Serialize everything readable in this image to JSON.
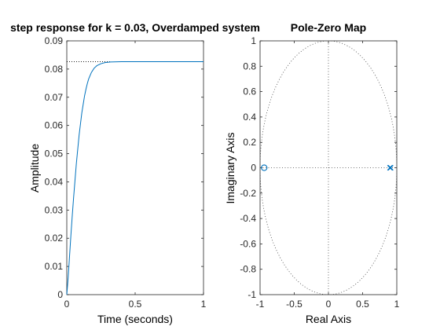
{
  "chart_data": [
    {
      "type": "line",
      "title": "step response for k = 0.03, Overdamped system",
      "xlabel": "Time (seconds)",
      "ylabel": "Amplitude",
      "xlim": [
        0,
        1
      ],
      "ylim": [
        0,
        0.09
      ],
      "xticks": [
        0,
        0.5,
        1
      ],
      "xtick_labels": [
        "0",
        "0.5",
        "1"
      ],
      "yticks": [
        0,
        0.01,
        0.02,
        0.03,
        0.04,
        0.05,
        0.06,
        0.07,
        0.08,
        0.09
      ],
      "ytick_labels": [
        "0",
        "0.01",
        "0.02",
        "0.03",
        "0.04",
        "0.05",
        "0.06",
        "0.07",
        "0.08",
        "0.09"
      ],
      "grid": false,
      "series": [
        {
          "color": "#0072bd",
          "x": [
            0,
            0.01,
            0.02,
            0.03,
            0.04,
            0.05,
            0.06,
            0.07,
            0.08,
            0.09,
            0.1,
            0.11,
            0.12,
            0.13,
            0.14,
            0.15,
            0.16,
            0.18,
            0.2,
            0.22,
            0.25,
            0.28,
            0.32,
            0.4,
            0.5,
            0.6,
            0.7,
            0.8,
            0.9,
            1.0
          ],
          "y": [
            0,
            0.006,
            0.0135,
            0.021,
            0.028,
            0.0345,
            0.0405,
            0.0465,
            0.0515,
            0.0565,
            0.0605,
            0.0645,
            0.0675,
            0.0705,
            0.0728,
            0.0748,
            0.0765,
            0.0788,
            0.0803,
            0.0812,
            0.0819,
            0.0823,
            0.0825,
            0.0826,
            0.0826,
            0.0826,
            0.0826,
            0.0826,
            0.0826,
            0.0826
          ]
        }
      ],
      "reference_lines": [
        {
          "style": "dotted",
          "color": "#000000",
          "from": [
            0,
            0.0826
          ],
          "to": [
            0.32,
            0.0826
          ]
        }
      ]
    },
    {
      "type": "scatter",
      "title": "Pole-Zero Map",
      "xlabel": "Real Axis",
      "ylabel": "Imaginary Axis",
      "xlim": [
        -1,
        1
      ],
      "ylim": [
        -1,
        1
      ],
      "xticks": [
        -1,
        -0.5,
        0,
        0.5,
        1
      ],
      "xtick_labels": [
        "-1",
        "-0.5",
        "0",
        "0.5",
        "1"
      ],
      "yticks": [
        -1,
        -0.8,
        -0.6,
        -0.4,
        -0.2,
        0,
        0.2,
        0.4,
        0.6,
        0.8,
        1
      ],
      "ytick_labels": [
        "-1",
        "-0.8",
        "-0.6",
        "-0.4",
        "-0.2",
        "0",
        "0.2",
        "0.4",
        "0.6",
        "0.8",
        "1"
      ],
      "grid": false,
      "unit_circle": true,
      "zeros": [
        {
          "x": -0.94,
          "y": 0
        }
      ],
      "poles": [
        {
          "x": 0.9,
          "y": 0
        },
        {
          "x": 0.91,
          "y": 0
        }
      ],
      "marker_color": "#0072bd"
    }
  ]
}
